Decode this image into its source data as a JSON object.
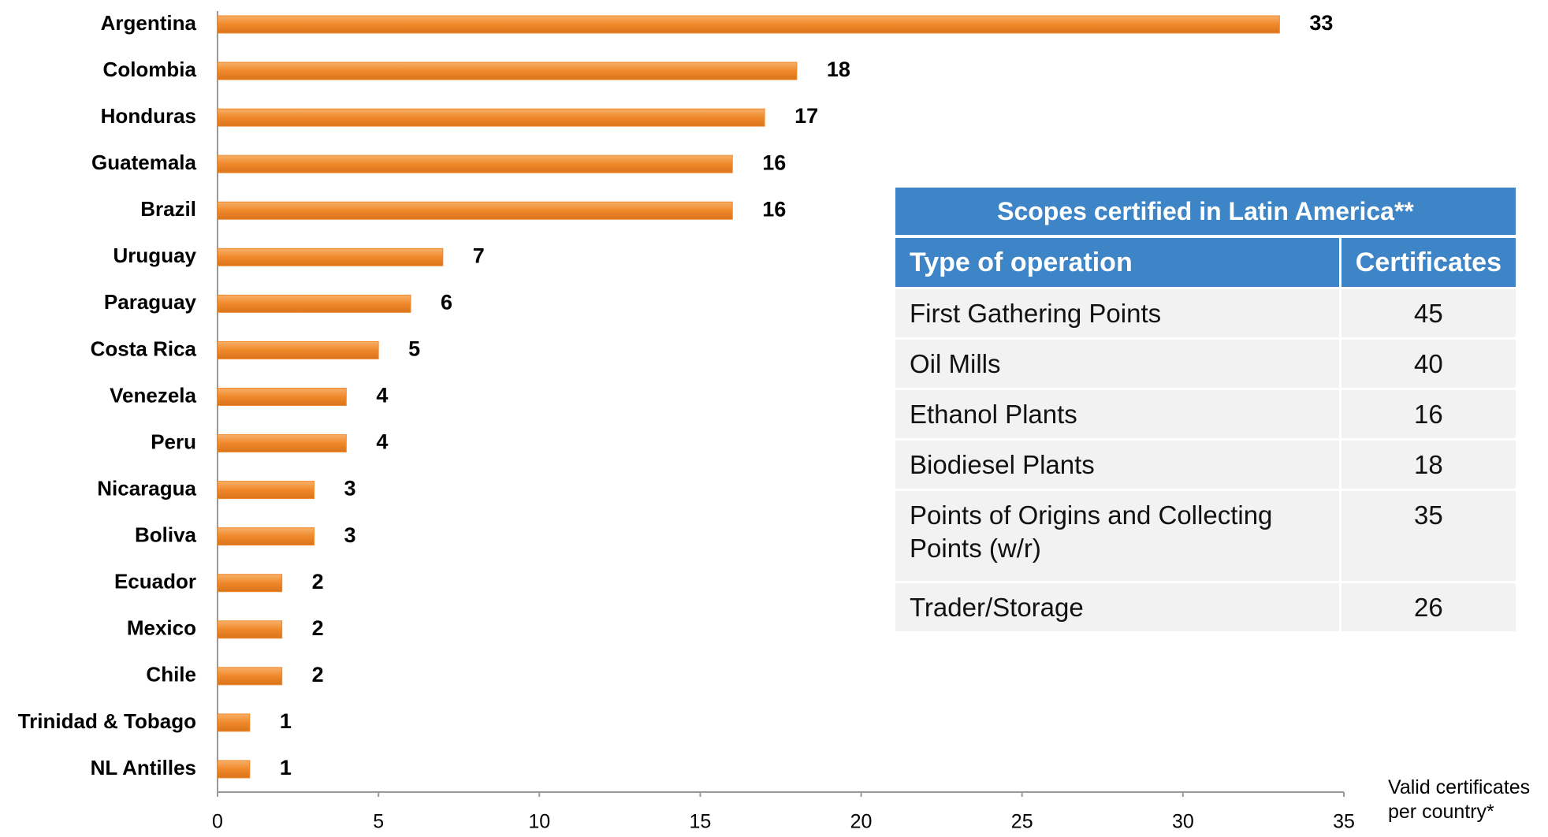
{
  "chart_data": {
    "type": "hbar",
    "x_label": "Valid certificates per country*",
    "categories": [
      "Argentina",
      "Colombia",
      "Honduras",
      "Guatemala",
      "Brazil",
      "Uruguay",
      "Paraguay",
      "Costa Rica",
      "Venezela",
      "Peru",
      "Nicaragua",
      "Boliva",
      "Ecuador",
      "Mexico",
      "Chile",
      "Trinidad & Tobago",
      "NL Antilles"
    ],
    "values": [
      33,
      18,
      17,
      16,
      16,
      7,
      6,
      5,
      4,
      4,
      3,
      3,
      2,
      2,
      2,
      1,
      1
    ],
    "color": "#f0882a",
    "xlim": [
      0,
      35
    ],
    "xticks": [
      0,
      5,
      10,
      15,
      20,
      25,
      30,
      35
    ],
    "grid": false
  },
  "table": {
    "title": "Scopes certified in Latin America**",
    "header": [
      "Type of operation",
      "Certificates"
    ],
    "rows": [
      [
        "First Gathering Points",
        "45"
      ],
      [
        "Oil Mills",
        "40"
      ],
      [
        "Ethanol Plants",
        "16"
      ],
      [
        "Biodiesel Plants",
        "18"
      ],
      [
        "Points of Origins and Collecting Points (w/r)",
        "35"
      ],
      [
        "Trader/Storage",
        "26"
      ]
    ]
  }
}
